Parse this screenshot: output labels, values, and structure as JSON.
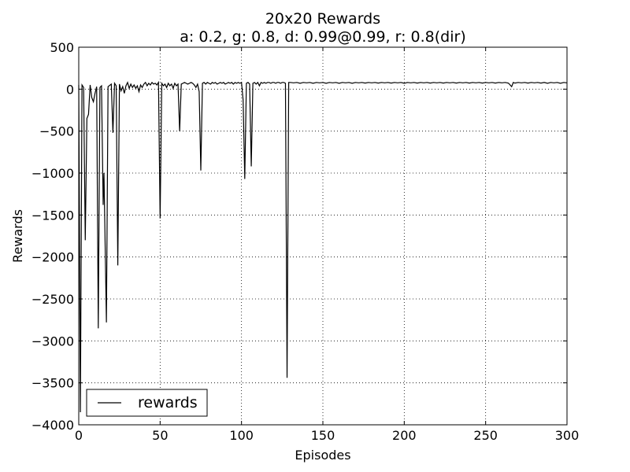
{
  "chart_data": {
    "type": "line",
    "title": "20x20 Rewards",
    "subtitle": "a: 0.2, g: 0.8, d: 0.99@0.99, r: 0.8(dir)",
    "xlabel": "Episodes",
    "ylabel": "Rewards",
    "xlim": [
      0,
      300
    ],
    "ylim": [
      -4000,
      500
    ],
    "xticks": [
      0,
      50,
      100,
      150,
      200,
      250,
      300
    ],
    "xtick_labels": [
      "0",
      "50",
      "100",
      "150",
      "200",
      "250",
      "300"
    ],
    "yticks": [
      500,
      0,
      -500,
      -1000,
      -1500,
      -2000,
      -2500,
      -3000,
      -3500,
      -4000
    ],
    "ytick_labels": [
      "500",
      "0",
      "−500",
      "−1000",
      "−1500",
      "−2000",
      "−2500",
      "−3000",
      "−3500",
      "−4000"
    ],
    "grid": true,
    "legend_position": "lower-left",
    "series": [
      {
        "name": "rewards",
        "color": "#000000",
        "points": [
          [
            0,
            50
          ],
          [
            1,
            -3850
          ],
          [
            2,
            50
          ],
          [
            3,
            20
          ],
          [
            4,
            -1800
          ],
          [
            5,
            -350
          ],
          [
            6,
            -300
          ],
          [
            7,
            50
          ],
          [
            8,
            -100
          ],
          [
            9,
            -150
          ],
          [
            10,
            -50
          ],
          [
            11,
            30
          ],
          [
            12,
            -2850
          ],
          [
            13,
            20
          ],
          [
            14,
            40
          ],
          [
            15,
            -1380
          ],
          [
            15.5,
            -1000
          ],
          [
            17,
            -2780
          ],
          [
            18,
            30
          ],
          [
            20,
            60
          ],
          [
            21,
            -520
          ],
          [
            22,
            70
          ],
          [
            23,
            40
          ],
          [
            24,
            -2100
          ],
          [
            25,
            60
          ],
          [
            26,
            -20
          ],
          [
            27,
            30
          ],
          [
            28,
            -50
          ],
          [
            29,
            40
          ],
          [
            30,
            80
          ],
          [
            31,
            10
          ],
          [
            32,
            60
          ],
          [
            33,
            20
          ],
          [
            34,
            50
          ],
          [
            35,
            10
          ],
          [
            36,
            40
          ],
          [
            37,
            -30
          ],
          [
            38,
            50
          ],
          [
            39,
            20
          ],
          [
            40,
            60
          ],
          [
            41,
            80
          ],
          [
            42,
            40
          ],
          [
            43,
            70
          ],
          [
            44,
            50
          ],
          [
            45,
            80
          ],
          [
            46,
            60
          ],
          [
            47,
            70
          ],
          [
            48,
            50
          ],
          [
            49,
            80
          ],
          [
            50,
            -1540
          ],
          [
            51,
            70
          ],
          [
            52,
            40
          ],
          [
            53,
            60
          ],
          [
            54,
            20
          ],
          [
            55,
            70
          ],
          [
            56,
            40
          ],
          [
            57,
            60
          ],
          [
            58,
            10
          ],
          [
            59,
            70
          ],
          [
            60,
            40
          ],
          [
            61,
            60
          ],
          [
            62,
            -500
          ],
          [
            63,
            60
          ],
          [
            64,
            70
          ],
          [
            65,
            80
          ],
          [
            66,
            70
          ],
          [
            67,
            60
          ],
          [
            68,
            70
          ],
          [
            69,
            80
          ],
          [
            70,
            70
          ],
          [
            71,
            50
          ],
          [
            72,
            20
          ],
          [
            73,
            60
          ],
          [
            74,
            -30
          ],
          [
            75,
            -970
          ],
          [
            76,
            70
          ],
          [
            77,
            80
          ],
          [
            78,
            60
          ],
          [
            79,
            80
          ],
          [
            80,
            70
          ],
          [
            81,
            60
          ],
          [
            82,
            80
          ],
          [
            83,
            70
          ],
          [
            84,
            80
          ],
          [
            85,
            60
          ],
          [
            86,
            70
          ],
          [
            87,
            80
          ],
          [
            88,
            70
          ],
          [
            89,
            80
          ],
          [
            90,
            60
          ],
          [
            91,
            70
          ],
          [
            92,
            80
          ],
          [
            93,
            70
          ],
          [
            94,
            80
          ],
          [
            95,
            60
          ],
          [
            96,
            80
          ],
          [
            97,
            70
          ],
          [
            98,
            80
          ],
          [
            99,
            70
          ],
          [
            100,
            80
          ],
          [
            101,
            -130
          ],
          [
            102,
            -1070
          ],
          [
            103,
            70
          ],
          [
            104,
            80
          ],
          [
            105,
            60
          ],
          [
            106,
            -920
          ],
          [
            107,
            70
          ],
          [
            108,
            80
          ],
          [
            109,
            60
          ],
          [
            110,
            80
          ],
          [
            111,
            40
          ],
          [
            112,
            80
          ],
          [
            113,
            70
          ],
          [
            114,
            80
          ],
          [
            115,
            70
          ],
          [
            116,
            80
          ],
          [
            117,
            80
          ],
          [
            118,
            70
          ],
          [
            119,
            80
          ],
          [
            120,
            80
          ],
          [
            121,
            70
          ],
          [
            122,
            80
          ],
          [
            123,
            80
          ],
          [
            124,
            70
          ],
          [
            125,
            80
          ],
          [
            126,
            80
          ],
          [
            127,
            70
          ],
          [
            128,
            -3440
          ],
          [
            129,
            80
          ],
          [
            130,
            80
          ],
          [
            132,
            75
          ],
          [
            134,
            80
          ],
          [
            136,
            70
          ],
          [
            138,
            80
          ],
          [
            140,
            75
          ],
          [
            142,
            80
          ],
          [
            144,
            70
          ],
          [
            146,
            80
          ],
          [
            148,
            75
          ],
          [
            150,
            80
          ],
          [
            152,
            70
          ],
          [
            154,
            80
          ],
          [
            156,
            75
          ],
          [
            158,
            80
          ],
          [
            160,
            70
          ],
          [
            162,
            80
          ],
          [
            164,
            75
          ],
          [
            166,
            80
          ],
          [
            168,
            70
          ],
          [
            170,
            80
          ],
          [
            172,
            75
          ],
          [
            174,
            80
          ],
          [
            176,
            72
          ],
          [
            178,
            80
          ],
          [
            180,
            75
          ],
          [
            182,
            80
          ],
          [
            184,
            72
          ],
          [
            186,
            80
          ],
          [
            188,
            75
          ],
          [
            190,
            80
          ],
          [
            192,
            72
          ],
          [
            194,
            80
          ],
          [
            196,
            75
          ],
          [
            198,
            80
          ],
          [
            200,
            70
          ],
          [
            202,
            80
          ],
          [
            204,
            75
          ],
          [
            206,
            80
          ],
          [
            208,
            72
          ],
          [
            210,
            80
          ],
          [
            212,
            75
          ],
          [
            214,
            80
          ],
          [
            216,
            72
          ],
          [
            218,
            80
          ],
          [
            220,
            75
          ],
          [
            222,
            80
          ],
          [
            224,
            72
          ],
          [
            226,
            80
          ],
          [
            228,
            75
          ],
          [
            230,
            80
          ],
          [
            232,
            72
          ],
          [
            234,
            80
          ],
          [
            236,
            75
          ],
          [
            238,
            80
          ],
          [
            240,
            72
          ],
          [
            242,
            80
          ],
          [
            244,
            75
          ],
          [
            246,
            80
          ],
          [
            248,
            72
          ],
          [
            250,
            80
          ],
          [
            252,
            75
          ],
          [
            254,
            80
          ],
          [
            256,
            72
          ],
          [
            258,
            80
          ],
          [
            260,
            75
          ],
          [
            262,
            80
          ],
          [
            264,
            72
          ],
          [
            266,
            30
          ],
          [
            267,
            80
          ],
          [
            268,
            72
          ],
          [
            270,
            80
          ],
          [
            272,
            75
          ],
          [
            274,
            80
          ],
          [
            276,
            72
          ],
          [
            278,
            80
          ],
          [
            280,
            75
          ],
          [
            282,
            80
          ],
          [
            284,
            72
          ],
          [
            286,
            80
          ],
          [
            288,
            70
          ],
          [
            290,
            80
          ],
          [
            292,
            75
          ],
          [
            294,
            80
          ],
          [
            296,
            70
          ],
          [
            298,
            80
          ],
          [
            300,
            75
          ]
        ]
      }
    ]
  }
}
